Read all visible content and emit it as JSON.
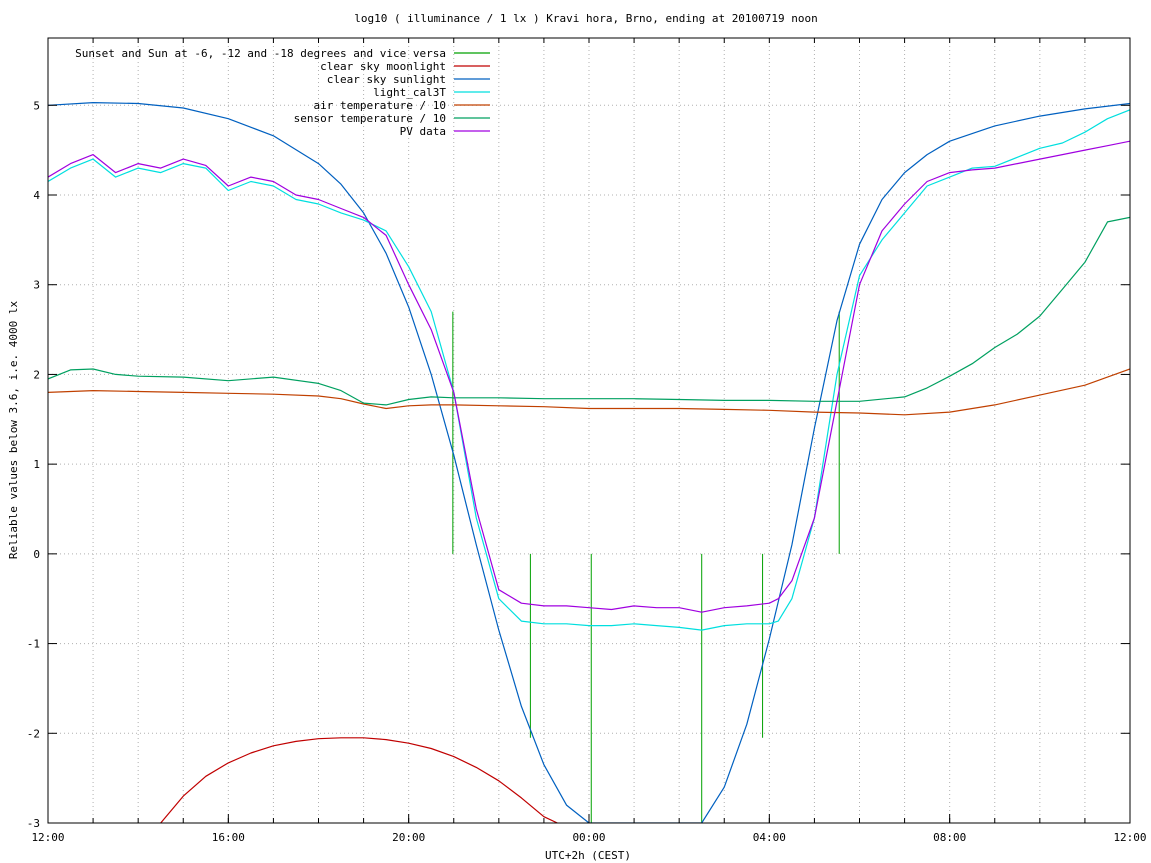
{
  "chart_data": {
    "type": "line",
    "title": "log10 ( illuminance / 1 lx ) Kravi hora, Brno, ending at 20100719 noon",
    "xlabel": "UTC+2h (CEST)",
    "ylabel": "Reliable values below 3.6, i.e. 4000 lx",
    "xlim": [
      12,
      36
    ],
    "ylim": [
      -3,
      5.75
    ],
    "grid": true,
    "legend_position": "top-left",
    "x_ticks": [
      {
        "v": 12,
        "label": "12:00"
      },
      {
        "v": 16,
        "label": "16:00"
      },
      {
        "v": 20,
        "label": "20:00"
      },
      {
        "v": 24,
        "label": "00:00"
      },
      {
        "v": 28,
        "label": "04:00"
      },
      {
        "v": 32,
        "label": "08:00"
      },
      {
        "v": 36,
        "label": "12:00"
      }
    ],
    "y_ticks": [
      {
        "v": -3,
        "label": "-3"
      },
      {
        "v": -2,
        "label": "-2"
      },
      {
        "v": -1,
        "label": "-1"
      },
      {
        "v": 0,
        "label": "0"
      },
      {
        "v": 1,
        "label": "1"
      },
      {
        "v": 2,
        "label": "2"
      },
      {
        "v": 3,
        "label": "3"
      },
      {
        "v": 4,
        "label": "4"
      },
      {
        "v": 5,
        "label": "5"
      }
    ],
    "series": [
      {
        "name": "Sunset and Sun at -6, -12 and -18 degrees and vice versa",
        "color": "#00a000",
        "style": "impulses",
        "impulses": [
          {
            "x": 20.98,
            "y0": 0,
            "y1": 2.7
          },
          {
            "x": 22.7,
            "y0": -2.05,
            "y1": 0
          },
          {
            "x": 24.05,
            "y0": -3,
            "y1": 0
          },
          {
            "x": 26.5,
            "y0": -3,
            "y1": 0
          },
          {
            "x": 27.85,
            "y0": -2.05,
            "y1": 0
          },
          {
            "x": 29.55,
            "y0": 0,
            "y1": 2.7
          }
        ]
      },
      {
        "name": "clear sky moonlight",
        "color": "#c00000",
        "x": [
          14.5,
          15.0,
          15.5,
          16.0,
          16.5,
          17.0,
          17.5,
          18.0,
          18.5,
          19.0,
          19.5,
          20.0,
          20.5,
          21.0,
          21.5,
          22.0,
          22.5,
          23.0,
          23.3
        ],
        "y": [
          -3.0,
          -2.7,
          -2.48,
          -2.33,
          -2.22,
          -2.14,
          -2.09,
          -2.06,
          -2.05,
          -2.05,
          -2.07,
          -2.11,
          -2.17,
          -2.26,
          -2.38,
          -2.53,
          -2.72,
          -2.93,
          -3.0
        ]
      },
      {
        "name": "clear sky sunlight",
        "color": "#0060c0",
        "x": [
          12.0,
          13.0,
          14.0,
          15.0,
          16.0,
          17.0,
          18.0,
          18.5,
          19.0,
          19.5,
          20.0,
          20.5,
          21.0,
          21.5,
          22.0,
          22.5,
          23.0,
          23.5,
          24.0,
          24.2,
          26.5,
          27.0,
          27.5,
          28.0,
          28.5,
          29.0,
          29.5,
          30.0,
          30.5,
          31.0,
          31.5,
          32.0,
          33.0,
          34.0,
          35.0,
          36.0
        ],
        "y": [
          5.0,
          5.03,
          5.02,
          4.97,
          4.85,
          4.66,
          4.35,
          4.12,
          3.8,
          3.35,
          2.75,
          2.0,
          1.1,
          0.1,
          -0.85,
          -1.7,
          -2.35,
          -2.8,
          -3.0,
          -3.0,
          -3.0,
          -2.6,
          -1.9,
          -0.95,
          0.1,
          1.4,
          2.6,
          3.45,
          3.95,
          4.25,
          4.45,
          4.6,
          4.77,
          4.88,
          4.96,
          5.02
        ]
      },
      {
        "name": "light_cal3T",
        "color": "#00dfdf",
        "x": [
          12.0,
          12.5,
          13.0,
          13.5,
          14.0,
          14.5,
          15.0,
          15.5,
          16.0,
          16.5,
          17.0,
          17.5,
          18.0,
          18.5,
          19.0,
          19.5,
          20.0,
          20.5,
          21.0,
          21.5,
          22.0,
          22.5,
          23.0,
          23.5,
          24.0,
          24.5,
          25.0,
          25.5,
          26.0,
          26.5,
          27.0,
          27.5,
          28.0,
          28.2,
          28.5,
          29.0,
          29.5,
          30.0,
          30.5,
          31.0,
          31.5,
          32.0,
          32.5,
          33.0,
          33.5,
          34.0,
          34.5,
          35.0,
          35.5,
          36.0
        ],
        "y": [
          4.15,
          4.3,
          4.4,
          4.2,
          4.3,
          4.25,
          4.35,
          4.3,
          4.05,
          4.15,
          4.1,
          3.95,
          3.9,
          3.8,
          3.72,
          3.6,
          3.2,
          2.7,
          1.8,
          0.4,
          -0.5,
          -0.75,
          -0.78,
          -0.78,
          -0.8,
          -0.8,
          -0.78,
          -0.8,
          -0.82,
          -0.85,
          -0.8,
          -0.78,
          -0.78,
          -0.75,
          -0.5,
          0.4,
          2.0,
          3.1,
          3.5,
          3.8,
          4.1,
          4.2,
          4.3,
          4.32,
          4.42,
          4.52,
          4.58,
          4.7,
          4.85,
          4.95
        ]
      },
      {
        "name": "air temperature / 10",
        "color": "#c04000",
        "x": [
          12.0,
          13.0,
          14.0,
          15.0,
          16.0,
          17.0,
          18.0,
          18.5,
          19.0,
          19.5,
          20.0,
          20.5,
          21.0,
          22.0,
          23.0,
          24.0,
          25.0,
          26.0,
          27.0,
          28.0,
          29.0,
          30.0,
          31.0,
          32.0,
          33.0,
          34.0,
          35.0,
          35.5,
          36.0
        ],
        "y": [
          1.8,
          1.82,
          1.81,
          1.8,
          1.79,
          1.78,
          1.76,
          1.73,
          1.67,
          1.62,
          1.65,
          1.66,
          1.66,
          1.65,
          1.64,
          1.62,
          1.62,
          1.62,
          1.61,
          1.6,
          1.58,
          1.57,
          1.55,
          1.58,
          1.66,
          1.77,
          1.88,
          1.97,
          2.06
        ]
      },
      {
        "name": "sensor temperature / 10",
        "color": "#00a060",
        "x": [
          12.0,
          12.5,
          13.0,
          13.5,
          14.0,
          15.0,
          16.0,
          17.0,
          18.0,
          18.5,
          19.0,
          19.5,
          20.0,
          20.5,
          21.0,
          22.0,
          23.0,
          24.0,
          25.0,
          26.0,
          27.0,
          28.0,
          29.0,
          30.0,
          31.0,
          31.5,
          32.0,
          32.5,
          33.0,
          33.5,
          34.0,
          34.5,
          35.0,
          35.5,
          36.0
        ],
        "y": [
          1.95,
          2.05,
          2.06,
          2.0,
          1.98,
          1.97,
          1.93,
          1.97,
          1.9,
          1.82,
          1.68,
          1.66,
          1.72,
          1.75,
          1.74,
          1.74,
          1.73,
          1.73,
          1.73,
          1.72,
          1.71,
          1.71,
          1.7,
          1.7,
          1.75,
          1.85,
          1.98,
          2.12,
          2.3,
          2.45,
          2.65,
          2.95,
          3.25,
          3.7,
          3.75
        ]
      },
      {
        "name": "PV data",
        "color": "#a000e0",
        "x": [
          12.0,
          12.5,
          13.0,
          13.5,
          14.0,
          14.5,
          15.0,
          15.5,
          16.0,
          16.5,
          17.0,
          17.5,
          18.0,
          18.5,
          19.0,
          19.5,
          20.0,
          20.5,
          21.0,
          21.5,
          22.0,
          22.5,
          23.0,
          23.5,
          24.0,
          24.5,
          25.0,
          25.5,
          26.0,
          26.5,
          27.0,
          27.5,
          28.0,
          28.2,
          28.5,
          29.0,
          29.5,
          30.0,
          30.5,
          31.0,
          31.5,
          32.0,
          32.5,
          33.0,
          33.5,
          34.0,
          34.5,
          35.0,
          35.5,
          36.0
        ],
        "y": [
          4.2,
          4.35,
          4.45,
          4.25,
          4.35,
          4.3,
          4.4,
          4.33,
          4.1,
          4.2,
          4.15,
          4.0,
          3.95,
          3.85,
          3.75,
          3.55,
          3.0,
          2.5,
          1.8,
          0.5,
          -0.4,
          -0.55,
          -0.58,
          -0.58,
          -0.6,
          -0.62,
          -0.58,
          -0.6,
          -0.6,
          -0.65,
          -0.6,
          -0.58,
          -0.55,
          -0.5,
          -0.3,
          0.4,
          1.7,
          3.0,
          3.6,
          3.9,
          4.15,
          4.25,
          4.28,
          4.3,
          4.35,
          4.4,
          4.45,
          4.5,
          4.55,
          4.6
        ]
      }
    ]
  }
}
